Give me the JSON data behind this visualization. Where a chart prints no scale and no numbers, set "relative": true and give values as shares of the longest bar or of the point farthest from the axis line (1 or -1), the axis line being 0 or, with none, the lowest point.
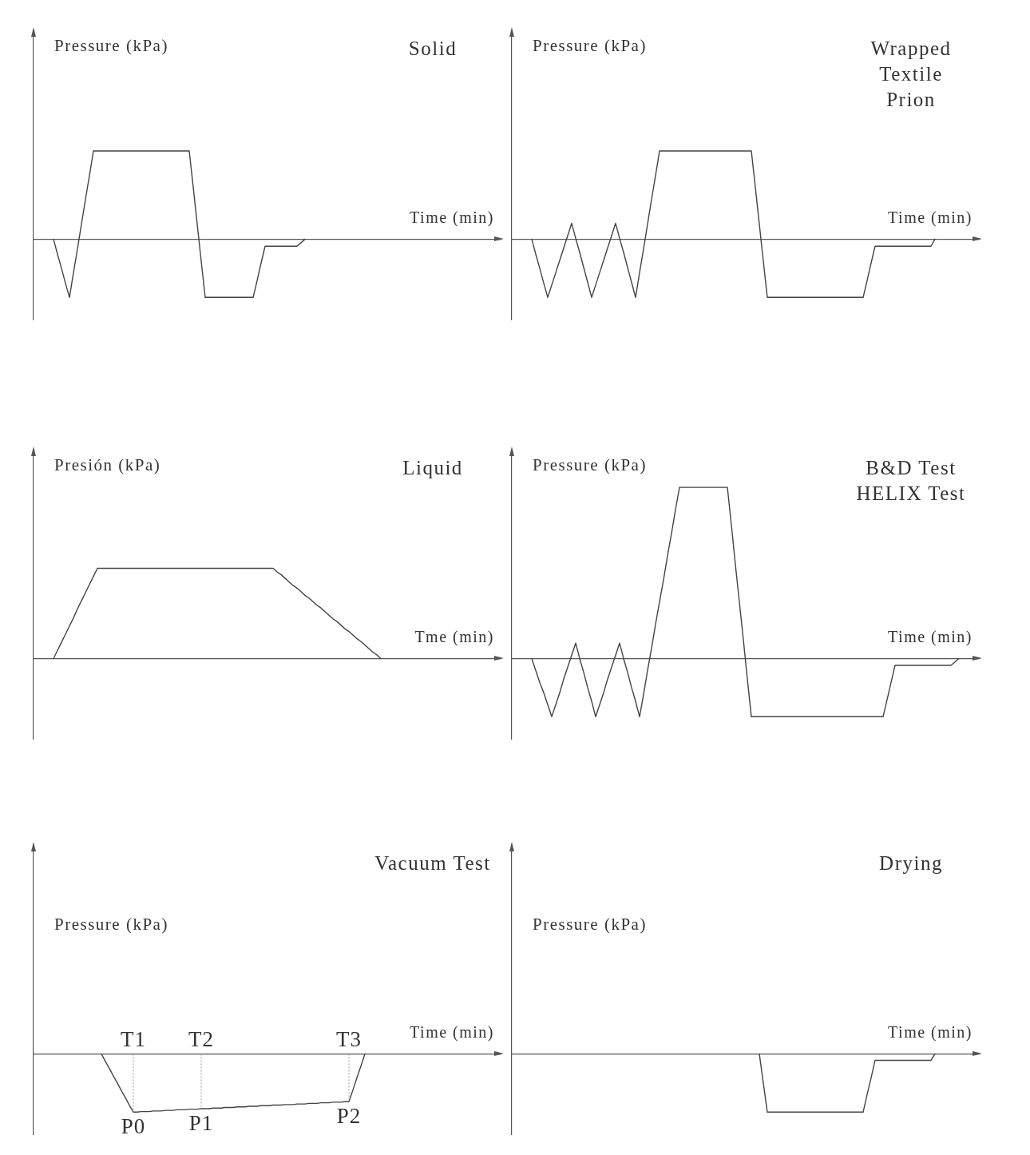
{
  "chart_data": [
    {
      "type": "line",
      "title": "Solid",
      "ylabel": "Pressure (kPa)",
      "xlabel": "Time (min)",
      "relative": true,
      "color": "#444444",
      "categories": [
        null,
        null,
        null,
        null,
        null,
        null,
        null,
        null,
        null,
        null,
        null,
        null,
        null,
        null,
        null,
        null,
        null,
        null,
        null,
        null,
        null,
        null,
        null,
        null,
        null,
        null,
        null,
        null,
        null,
        null,
        null,
        null,
        null,
        null,
        null,
        null,
        null,
        null,
        null,
        null,
        null,
        null,
        null,
        null,
        null,
        null,
        null,
        null,
        null,
        null,
        null,
        null,
        null,
        null,
        null,
        null,
        null,
        null,
        null,
        null,
        null,
        null,
        null,
        null,
        null,
        null,
        null,
        null,
        null,
        null,
        null,
        null,
        null,
        null,
        null,
        null,
        null,
        null,
        null,
        null,
        null,
        null,
        null,
        null,
        null,
        null,
        null,
        null,
        null,
        null,
        null,
        null,
        null,
        null,
        null,
        null,
        null,
        null,
        null,
        null,
        null,
        null,
        null,
        null,
        null,
        null,
        null,
        null,
        null,
        null,
        null,
        null,
        null,
        null,
        null,
        null,
        null,
        null
      ],
      "values": [
        null,
        null,
        null,
        null,
        null,
        0,
        -0.17,
        -0.33,
        -0.5,
        -0.66,
        -0.38,
        -0.11,
        0.17,
        0.45,
        0.72,
        1,
        1,
        1,
        1,
        1,
        1,
        1,
        1,
        1,
        1,
        1,
        1,
        1,
        1,
        1,
        1,
        1,
        1,
        1,
        1,
        1,
        1,
        1,
        1,
        1,
        0.59,
        0.17,
        -0.25,
        -0.66,
        -0.66,
        -0.66,
        -0.66,
        -0.66,
        -0.66,
        -0.66,
        -0.66,
        -0.66,
        -0.66,
        -0.66,
        -0.66,
        -0.66,
        -0.47,
        -0.27,
        -0.08,
        -0.08,
        -0.08,
        -0.08,
        -0.08,
        -0.08,
        -0.08,
        -0.08,
        -0.08,
        -0.04,
        0,
        null,
        null,
        null,
        null,
        null,
        null,
        null,
        null,
        null,
        null,
        null,
        null,
        null,
        null,
        null,
        null,
        null,
        null,
        null,
        null,
        null,
        null,
        null,
        null,
        null,
        null,
        null,
        null,
        null,
        null,
        null,
        null,
        null,
        null,
        null,
        null,
        null,
        null,
        null,
        null,
        null,
        null,
        null,
        null,
        null,
        null,
        null,
        null,
        null
      ]
    },
    {
      "type": "line",
      "title": "Wrapped\nTextile\nPrion",
      "ylabel": "Pressure (kPa)",
      "xlabel": "Time (min)",
      "relative": true,
      "color": "#444444",
      "categories": [
        null,
        null,
        null,
        null,
        null,
        null,
        null,
        null,
        null,
        null,
        null,
        null,
        null,
        null,
        null,
        null,
        null,
        null,
        null,
        null,
        null,
        null,
        null,
        null,
        null,
        null,
        null,
        null,
        null,
        null,
        null,
        null,
        null,
        null,
        null,
        null,
        null,
        null,
        null,
        null,
        null,
        null,
        null,
        null,
        null,
        null,
        null,
        null,
        null,
        null,
        null,
        null,
        null,
        null,
        null,
        null,
        null,
        null,
        null,
        null,
        null,
        null,
        null,
        null,
        null,
        null,
        null,
        null,
        null,
        null,
        null,
        null,
        null,
        null,
        null,
        null,
        null,
        null,
        null,
        null,
        null,
        null,
        null,
        null,
        null,
        null,
        null,
        null,
        null,
        null,
        null,
        null,
        null,
        null,
        null,
        null,
        null,
        null,
        null,
        null,
        null,
        null,
        null,
        null,
        null,
        null,
        null,
        null,
        null,
        null,
        null,
        null,
        null,
        null,
        null,
        null,
        null,
        null
      ],
      "values": [
        null,
        null,
        null,
        null,
        null,
        0,
        -0.17,
        -0.33,
        -0.5,
        -0.66,
        -0.52,
        -0.38,
        -0.24,
        -0.1,
        0.04,
        0.18,
        0.01,
        -0.15,
        -0.32,
        -0.49,
        -0.66,
        -0.52,
        -0.38,
        -0.24,
        -0.1,
        0.04,
        0.18,
        0.01,
        -0.15,
        -0.32,
        -0.49,
        -0.66,
        -0.38,
        -0.11,
        0.17,
        0.45,
        0.72,
        1,
        1,
        1,
        1,
        1,
        1,
        1,
        1,
        1,
        1,
        1,
        1,
        1,
        1,
        1,
        1,
        1,
        1,
        1,
        1,
        1,
        1,
        1,
        1,
        0.59,
        0.17,
        -0.25,
        -0.66,
        -0.66,
        -0.66,
        -0.66,
        -0.66,
        -0.66,
        -0.66,
        -0.66,
        -0.66,
        -0.66,
        -0.66,
        -0.66,
        -0.66,
        -0.66,
        -0.66,
        -0.66,
        -0.66,
        -0.66,
        -0.66,
        -0.66,
        -0.66,
        -0.66,
        -0.66,
        -0.66,
        -0.66,
        -0.47,
        -0.27,
        -0.08,
        -0.08,
        -0.08,
        -0.08,
        -0.08,
        -0.08,
        -0.08,
        -0.08,
        -0.08,
        -0.08,
        -0.08,
        -0.08,
        -0.08,
        -0.08,
        -0.08,
        0,
        null,
        null,
        null,
        null,
        null,
        null,
        null,
        null,
        null,
        null,
        null
      ]
    },
    {
      "type": "line",
      "title": "Liquid",
      "ylabel": "Presión (kPa)",
      "xlabel": "Tme (min)",
      "relative": true,
      "color": "#444444",
      "categories": [
        null,
        null,
        null,
        null,
        null,
        null,
        null,
        null,
        null,
        null,
        null,
        null,
        null,
        null,
        null,
        null,
        null,
        null,
        null,
        null,
        null,
        null,
        null,
        null,
        null,
        null,
        null,
        null,
        null,
        null,
        null,
        null,
        null,
        null,
        null,
        null,
        null,
        null,
        null,
        null,
        null,
        null,
        null,
        null,
        null,
        null,
        null,
        null,
        null,
        null,
        null,
        null,
        null,
        null,
        null,
        null,
        null,
        null,
        null,
        null,
        null,
        null,
        null,
        null,
        null,
        null,
        null,
        null,
        null,
        null,
        null,
        null,
        null,
        null,
        null,
        null,
        null,
        null,
        null,
        null,
        null,
        null,
        null,
        null,
        null,
        null,
        null,
        null,
        null,
        null,
        null,
        null,
        null,
        null,
        null,
        null,
        null,
        null,
        null,
        null,
        null,
        null,
        null,
        null,
        null,
        null,
        null,
        null,
        null,
        null,
        null,
        null,
        null,
        null,
        null,
        null,
        null,
        null
      ],
      "values": [
        null,
        null,
        null,
        null,
        null,
        0,
        0.09,
        0.18,
        0.27,
        0.36,
        0.45,
        0.55,
        0.64,
        0.73,
        0.82,
        0.91,
        1,
        1,
        1,
        1,
        1,
        1,
        1,
        1,
        1,
        1,
        1,
        1,
        1,
        1,
        1,
        1,
        1,
        1,
        1,
        1,
        1,
        1,
        1,
        1,
        1,
        1,
        1,
        1,
        1,
        1,
        1,
        1,
        1,
        1,
        1,
        1,
        1,
        1,
        1,
        1,
        1,
        1,
        1,
        1,
        1,
        0.96,
        0.93,
        0.89,
        0.85,
        0.81,
        0.78,
        0.74,
        0.7,
        0.67,
        0.63,
        0.59,
        0.56,
        0.52,
        0.48,
        0.44,
        0.41,
        0.37,
        0.33,
        0.3,
        0.26,
        0.22,
        0.19,
        0.15,
        0.11,
        0.07,
        0.04,
        0,
        null,
        null,
        null,
        null,
        null,
        null,
        null,
        null,
        null,
        null,
        null,
        null,
        null,
        null,
        null,
        null,
        null,
        null,
        null,
        null,
        null,
        null,
        null,
        null,
        null,
        null,
        null,
        null,
        null,
        null
      ]
    },
    {
      "type": "line",
      "title": "B&D Test\nHELIX Test",
      "ylabel": "Pressure (kPa)",
      "xlabel": "Time (min)",
      "relative": true,
      "color": "#444444",
      "categories": [
        null,
        null,
        null,
        null,
        null,
        null,
        null,
        null,
        null,
        null,
        null,
        null,
        null,
        null,
        null,
        null,
        null,
        null,
        null,
        null,
        null,
        null,
        null,
        null,
        null,
        null,
        null,
        null,
        null,
        null,
        null,
        null,
        null,
        null,
        null,
        null,
        null,
        null,
        null,
        null,
        null,
        null,
        null,
        null,
        null,
        null,
        null,
        null,
        null,
        null,
        null,
        null,
        null,
        null,
        null,
        null,
        null,
        null,
        null,
        null,
        null,
        null,
        null,
        null,
        null,
        null,
        null,
        null,
        null,
        null,
        null,
        null,
        null,
        null,
        null,
        null,
        null,
        null,
        null,
        null,
        null,
        null,
        null,
        null,
        null,
        null,
        null,
        null,
        null,
        null,
        null,
        null,
        null,
        null,
        null,
        null,
        null,
        null,
        null,
        null,
        null,
        null,
        null,
        null,
        null,
        null,
        null,
        null,
        null,
        null,
        null,
        null,
        null,
        null,
        null,
        null,
        null,
        null
      ],
      "values": [
        null,
        null,
        null,
        null,
        null,
        0,
        -0.07,
        -0.14,
        -0.2,
        -0.27,
        -0.34,
        -0.27,
        -0.2,
        -0.12,
        -0.05,
        0.02,
        0.09,
        0,
        -0.08,
        -0.17,
        -0.25,
        -0.34,
        -0.27,
        -0.2,
        -0.12,
        -0.05,
        0.02,
        0.09,
        0,
        -0.08,
        -0.17,
        -0.25,
        -0.34,
        -0.21,
        -0.07,
        0.06,
        0.2,
        0.33,
        0.46,
        0.6,
        0.73,
        0.87,
        1,
        1,
        1,
        1,
        1,
        1,
        1,
        1,
        1,
        1,
        1,
        1,
        1,
        0.78,
        0.55,
        0.33,
        0.11,
        -0.12,
        -0.34,
        -0.34,
        -0.34,
        -0.34,
        -0.34,
        -0.34,
        -0.34,
        -0.34,
        -0.34,
        -0.34,
        -0.34,
        -0.34,
        -0.34,
        -0.34,
        -0.34,
        -0.34,
        -0.34,
        -0.34,
        -0.34,
        -0.34,
        -0.34,
        -0.34,
        -0.34,
        -0.34,
        -0.34,
        -0.34,
        -0.34,
        -0.34,
        -0.34,
        -0.34,
        -0.34,
        -0.34,
        -0.34,
        -0.34,
        -0.24,
        -0.14,
        -0.04,
        -0.04,
        -0.04,
        -0.04,
        -0.04,
        -0.04,
        -0.04,
        -0.04,
        -0.04,
        -0.04,
        -0.04,
        -0.04,
        -0.04,
        -0.04,
        -0.04,
        -0.02,
        0,
        null,
        null,
        null,
        null,
        null
      ]
    },
    {
      "type": "line",
      "title": "Vacuum Test",
      "ylabel": "Pressure (kPa)",
      "xlabel": "Time (min)",
      "relative": true,
      "color": "#444444",
      "categories": [
        null,
        null,
        null,
        null,
        null,
        null,
        null,
        null,
        null,
        null,
        null,
        null,
        null,
        null,
        null,
        null,
        null,
        null,
        null,
        null,
        null,
        null,
        null,
        null,
        null,
        "T1",
        null,
        null,
        null,
        null,
        null,
        null,
        null,
        null,
        null,
        null,
        null,
        null,
        null,
        null,
        null,
        null,
        "T2",
        null,
        null,
        null,
        null,
        null,
        null,
        null,
        null,
        null,
        null,
        null,
        null,
        null,
        null,
        null,
        null,
        null,
        null,
        null,
        null,
        null,
        null,
        null,
        null,
        null,
        null,
        null,
        null,
        null,
        null,
        null,
        null,
        null,
        null,
        null,
        null,
        "T3",
        null,
        null,
        null,
        null,
        null,
        null,
        null,
        null,
        null,
        null,
        null,
        null,
        null,
        null,
        null,
        null,
        null,
        null,
        null,
        null,
        null,
        null,
        null,
        null,
        null,
        null,
        null,
        null,
        null,
        null,
        null,
        null,
        null,
        null,
        null,
        null,
        null,
        null
      ],
      "values": [
        null,
        null,
        null,
        null,
        null,
        null,
        null,
        null,
        null,
        null,
        null,
        null,
        null,
        null,
        null,
        null,
        null,
        0,
        -0.13,
        -0.25,
        -0.38,
        -0.5,
        -0.63,
        -0.75,
        -0.88,
        -1,
        -1,
        -0.99,
        -0.99,
        -0.99,
        -0.98,
        -0.98,
        -0.98,
        -0.97,
        -0.97,
        -0.97,
        -0.96,
        -0.96,
        -0.96,
        -0.95,
        -0.95,
        -0.95,
        -0.94,
        -0.94,
        -0.94,
        -0.93,
        -0.93,
        -0.93,
        -0.92,
        -0.92,
        -0.92,
        -0.91,
        -0.91,
        -0.91,
        -0.9,
        -0.9,
        -0.9,
        -0.89,
        -0.89,
        -0.89,
        -0.88,
        -0.88,
        -0.88,
        -0.87,
        -0.87,
        -0.87,
        -0.86,
        -0.86,
        -0.86,
        -0.85,
        -0.85,
        -0.85,
        -0.84,
        -0.84,
        -0.84,
        -0.83,
        -0.83,
        -0.83,
        -0.82,
        -0.82,
        -0.62,
        -0.41,
        -0.21,
        0,
        null,
        null,
        null,
        null,
        null,
        null,
        null,
        null,
        null,
        null,
        null,
        null,
        null,
        null,
        null,
        null,
        null,
        null,
        null,
        null,
        null,
        null,
        null,
        null,
        null,
        null,
        null,
        null,
        null,
        null,
        null,
        null,
        null,
        null
      ],
      "annotations": [
        {
          "text": "P0",
          "x": "T1",
          "y": -1
        },
        {
          "text": "P1",
          "x": "T2",
          "y": -0.94
        },
        {
          "text": "P2",
          "x": "T3",
          "y": -0.82
        }
      ]
    },
    {
      "type": "line",
      "title": "Drying",
      "ylabel": "Pressure (kPa)",
      "xlabel": "Time (min)",
      "relative": true,
      "color": "#444444",
      "categories": [
        null,
        null,
        null,
        null,
        null,
        null,
        null,
        null,
        null,
        null,
        null,
        null,
        null,
        null,
        null,
        null,
        null,
        null,
        null,
        null,
        null,
        null,
        null,
        null,
        null,
        null,
        null,
        null,
        null,
        null,
        null,
        null,
        null,
        null,
        null,
        null,
        null,
        null,
        null,
        null,
        null,
        null,
        null,
        null,
        null,
        null,
        null,
        null,
        null,
        null,
        null,
        null,
        null,
        null,
        null,
        null,
        null,
        null,
        null,
        null,
        null,
        null,
        null,
        null,
        null,
        null,
        null,
        null,
        null,
        null,
        null,
        null,
        null,
        null,
        null,
        null,
        null,
        null,
        null,
        null,
        null,
        null,
        null,
        null,
        null,
        null,
        null,
        null,
        null,
        null,
        null,
        null,
        null,
        null,
        null,
        null,
        null,
        null,
        null,
        null,
        null,
        null,
        null,
        null,
        null,
        null,
        null,
        null,
        null,
        null,
        null,
        null,
        null,
        null,
        null,
        null,
        null,
        null
      ],
      "values": [
        null,
        null,
        null,
        null,
        null,
        null,
        null,
        null,
        null,
        null,
        null,
        null,
        null,
        null,
        null,
        null,
        null,
        null,
        null,
        null,
        null,
        null,
        null,
        null,
        null,
        null,
        null,
        null,
        null,
        null,
        null,
        null,
        null,
        null,
        null,
        null,
        null,
        null,
        null,
        null,
        null,
        null,
        null,
        null,
        null,
        null,
        null,
        null,
        null,
        null,
        null,
        null,
        null,
        null,
        null,
        null,
        null,
        null,
        null,
        null,
        null,
        null,
        0,
        -0.5,
        -1,
        -1,
        -1,
        -1,
        -1,
        -1,
        -1,
        -1,
        -1,
        -1,
        -1,
        -1,
        -1,
        -1,
        -1,
        -1,
        -1,
        -1,
        -1,
        -1,
        -1,
        -1,
        -1,
        -1,
        -1,
        -0.7,
        -0.41,
        -0.11,
        -0.11,
        -0.11,
        -0.11,
        -0.11,
        -0.11,
        -0.11,
        -0.11,
        -0.11,
        -0.11,
        -0.11,
        -0.11,
        -0.11,
        -0.11,
        -0.11,
        0,
        null,
        null,
        null,
        null,
        null,
        null,
        null,
        null,
        null,
        null,
        null
      ]
    }
  ]
}
